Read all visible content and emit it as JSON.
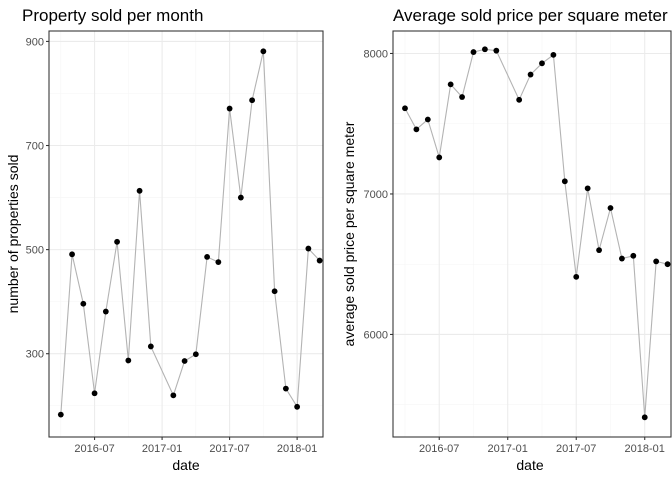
{
  "chart_data": [
    {
      "type": "line",
      "title": "Property sold per month",
      "xlabel": "date",
      "ylabel": "number of properties sold",
      "xtick_labels": [
        "2016-07",
        "2017-01",
        "2017-07",
        "2018-01"
      ],
      "ytick_labels": [
        "300",
        "500",
        "700",
        "900"
      ],
      "yticks": [
        300,
        500,
        700,
        900
      ],
      "ylim": [
        140,
        920
      ],
      "grid": true,
      "x": [
        "2016-04",
        "2016-05",
        "2016-06",
        "2016-07",
        "2016-08",
        "2016-09",
        "2016-10",
        "2016-11",
        "2016-12",
        "2017-01",
        "2017-02",
        "2017-03",
        "2017-04",
        "2017-05",
        "2017-06",
        "2017-07",
        "2017-08",
        "2017-09",
        "2017-10",
        "2017-11",
        "2017-12",
        "2018-01",
        "2018-02",
        "2018-03"
      ],
      "series": [
        {
          "values": [
            183,
            491,
            396,
            224,
            381,
            515,
            287,
            613,
            314,
            null,
            220,
            286,
            299,
            486,
            476,
            771,
            600,
            787,
            881,
            420,
            233,
            198,
            502,
            479
          ]
        }
      ]
    },
    {
      "type": "line",
      "title": "Average sold price per square meter",
      "xlabel": "date",
      "ylabel": "average sold price per square meter",
      "xtick_labels": [
        "2016-07",
        "2017-01",
        "2017-07",
        "2018-01"
      ],
      "ytick_labels": [
        "6000",
        "7000",
        "8000"
      ],
      "yticks": [
        6000,
        7000,
        8000
      ],
      "ylim": [
        5270,
        8160
      ],
      "grid": true,
      "x": [
        "2016-04",
        "2016-05",
        "2016-06",
        "2016-07",
        "2016-08",
        "2016-09",
        "2016-10",
        "2016-11",
        "2016-12",
        "2017-01",
        "2017-02",
        "2017-03",
        "2017-04",
        "2017-05",
        "2017-06",
        "2017-07",
        "2017-08",
        "2017-09",
        "2017-10",
        "2017-11",
        "2017-12",
        "2018-01",
        "2018-02",
        "2018-03"
      ],
      "series": [
        {
          "values": [
            7610,
            7460,
            7530,
            7260,
            7780,
            7690,
            8010,
            8030,
            8020,
            null,
            7670,
            7850,
            7930,
            7990,
            7090,
            6410,
            7040,
            6600,
            6900,
            6540,
            6560,
            5410,
            6520,
            6500
          ]
        }
      ]
    }
  ]
}
